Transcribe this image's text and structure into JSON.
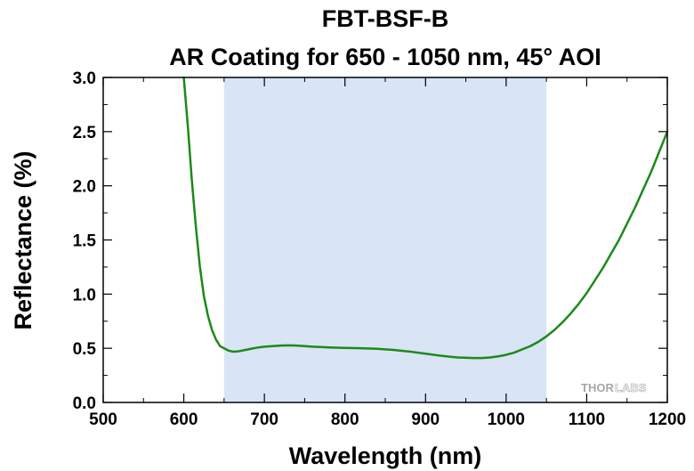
{
  "chart_data": {
    "type": "line",
    "title": "FBT-BSF-B",
    "subtitle": "AR Coating for 650 - 1050 nm, 45° AOI",
    "xlabel": "Wavelength (nm)",
    "ylabel": "Reflectance (%)",
    "xlim": [
      500,
      1200
    ],
    "ylim": [
      0.0,
      3.0
    ],
    "x_ticks": [
      500,
      600,
      700,
      800,
      900,
      1000,
      1100,
      1200
    ],
    "x_tick_labels": [
      "500",
      "600",
      "700",
      "800",
      "900",
      "1000",
      "1100",
      "1200"
    ],
    "y_ticks": [
      0.0,
      0.5,
      1.0,
      1.5,
      2.0,
      2.5,
      3.0
    ],
    "y_tick_labels": [
      "0.0",
      "0.5",
      "1.0",
      "1.5",
      "2.0",
      "2.5",
      "3.0"
    ],
    "grid": false,
    "highlight_band": {
      "x_start": 650,
      "x_end": 1050,
      "color": "#d9e4f5"
    },
    "series": [
      {
        "color": "#1a8a1a",
        "x": [
          600,
          605,
          610,
          615,
          620,
          625,
          630,
          635,
          640,
          645,
          650,
          655,
          660,
          665,
          670,
          680,
          690,
          700,
          710,
          720,
          730,
          740,
          750,
          760,
          770,
          780,
          790,
          800,
          820,
          840,
          860,
          880,
          900,
          920,
          940,
          960,
          970,
          980,
          990,
          1000,
          1010,
          1020,
          1030,
          1040,
          1050,
          1060,
          1070,
          1080,
          1090,
          1100,
          1120,
          1140,
          1160,
          1180,
          1200
        ],
        "y": [
          3.0,
          2.55,
          2.05,
          1.62,
          1.25,
          0.98,
          0.8,
          0.67,
          0.58,
          0.52,
          0.5,
          0.48,
          0.47,
          0.47,
          0.475,
          0.49,
          0.505,
          0.515,
          0.52,
          0.525,
          0.527,
          0.525,
          0.52,
          0.515,
          0.512,
          0.508,
          0.505,
          0.503,
          0.5,
          0.495,
          0.485,
          0.47,
          0.45,
          0.43,
          0.415,
          0.41,
          0.41,
          0.415,
          0.425,
          0.44,
          0.46,
          0.49,
          0.52,
          0.56,
          0.61,
          0.67,
          0.74,
          0.82,
          0.91,
          1.01,
          1.24,
          1.5,
          1.8,
          2.13,
          2.5
        ]
      }
    ]
  },
  "logo": {
    "text_main": "THOR",
    "text_secondary": "LABS"
  }
}
